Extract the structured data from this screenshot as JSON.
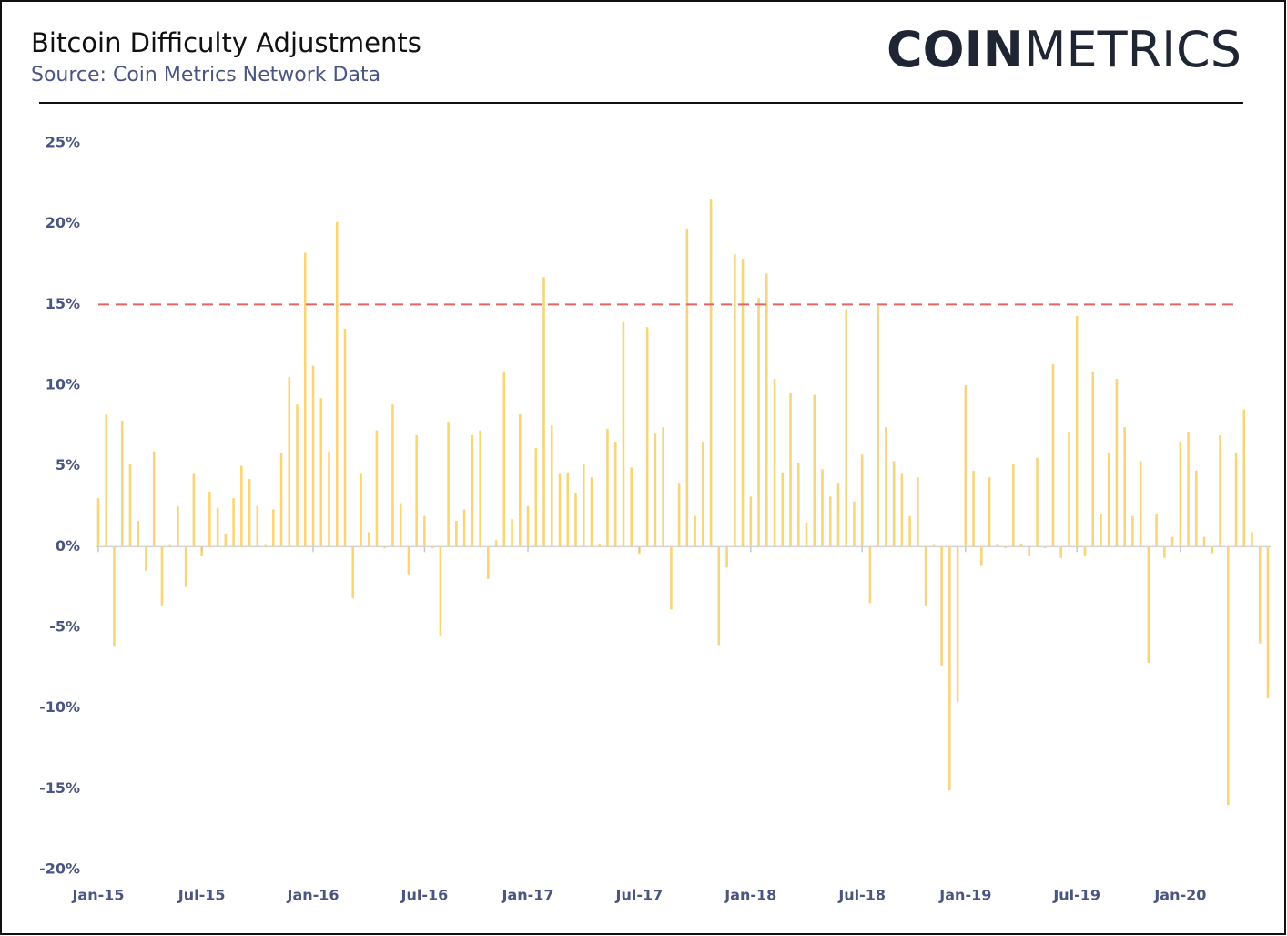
{
  "chart_data": {
    "type": "bar",
    "title": "Bitcoin Difficulty Adjustments",
    "subtitle": "Source: Coin Metrics Network Data",
    "logo_bold": "COIN",
    "logo_light": "METRICS",
    "color": "#f9d57a",
    "reference_line": {
      "value": 15,
      "color": "#e06666"
    },
    "ylim": [
      -20,
      25
    ],
    "yticks": [
      {
        "value": -20,
        "label": "-20%"
      },
      {
        "value": -15,
        "label": "-15%"
      },
      {
        "value": -10,
        "label": "-10%"
      },
      {
        "value": -5,
        "label": "-5%"
      },
      {
        "value": 0,
        "label": "0%"
      },
      {
        "value": 5,
        "label": "5%"
      },
      {
        "value": 10,
        "label": "10%"
      },
      {
        "value": 15,
        "label": "15%"
      },
      {
        "value": 20,
        "label": "20%"
      },
      {
        "value": 25,
        "label": "25%"
      }
    ],
    "categories": [
      "Jan-15",
      null,
      null,
      null,
      null,
      null,
      null,
      null,
      null,
      null,
      null,
      null,
      null,
      "Jul-15",
      null,
      null,
      null,
      null,
      null,
      null,
      null,
      null,
      null,
      null,
      null,
      null,
      null,
      "Jan-16",
      null,
      null,
      null,
      null,
      null,
      null,
      null,
      null,
      null,
      null,
      null,
      null,
      null,
      "Jul-16",
      null,
      null,
      null,
      null,
      null,
      null,
      null,
      null,
      null,
      null,
      null,
      null,
      "Jan-17",
      null,
      null,
      null,
      null,
      null,
      null,
      null,
      null,
      null,
      null,
      null,
      null,
      null,
      "Jul-17",
      null,
      null,
      null,
      null,
      null,
      null,
      null,
      null,
      null,
      null,
      null,
      null,
      null,
      "Jan-18",
      null,
      null,
      null,
      null,
      null,
      null,
      null,
      null,
      null,
      null,
      null,
      null,
      null,
      "Jul-18",
      null,
      null,
      null,
      null,
      null,
      null,
      null,
      null,
      null,
      null,
      null,
      null,
      "Jan-19",
      null,
      null,
      null,
      null,
      null,
      null,
      null,
      null,
      null,
      null,
      null,
      null,
      null,
      "Jul-19",
      null,
      null,
      null,
      null,
      null,
      null,
      null,
      null,
      null,
      null,
      null,
      null,
      "Jan-20",
      null,
      null,
      null,
      null,
      null,
      null,
      null,
      null,
      null,
      null,
      null
    ],
    "values": [
      3.0,
      8.2,
      -6.2,
      7.8,
      5.1,
      1.6,
      -1.5,
      5.9,
      -3.7,
      0.1,
      2.5,
      -2.5,
      4.5,
      -0.6,
      3.4,
      2.4,
      0.8,
      3.0,
      5.0,
      4.2,
      2.5,
      0.1,
      2.3,
      5.8,
      10.5,
      8.8,
      18.2,
      11.2,
      9.2,
      5.9,
      20.1,
      13.5,
      -3.2,
      4.5,
      0.9,
      7.2,
      -0.1,
      8.8,
      2.7,
      -1.7,
      6.9,
      1.9,
      -0.1,
      -5.5,
      7.7,
      1.6,
      2.3,
      6.9,
      7.2,
      -2.0,
      0.4,
      10.8,
      1.7,
      8.2,
      2.5,
      6.1,
      16.7,
      7.5,
      4.5,
      4.6,
      3.3,
      5.1,
      4.3,
      0.2,
      7.3,
      6.5,
      13.9,
      4.9,
      -0.5,
      13.6,
      7.0,
      7.4,
      -3.9,
      3.9,
      19.7,
      1.9,
      6.5,
      21.5,
      -6.1,
      -1.3,
      18.1,
      17.8,
      3.1,
      15.4,
      16.9,
      10.4,
      4.6,
      9.5,
      5.2,
      1.5,
      9.4,
      4.8,
      3.1,
      3.9,
      14.7,
      2.8,
      5.7,
      -3.5,
      14.9,
      7.4,
      5.3,
      4.5,
      1.9,
      4.3,
      -3.7,
      0.1,
      -7.4,
      -15.1,
      -9.6,
      10.0,
      4.7,
      -1.2,
      4.3,
      0.2,
      -0.1,
      5.1,
      0.2,
      -0.6,
      5.5,
      -0.1,
      11.3,
      -0.7,
      7.1,
      14.3,
      -0.6,
      10.8,
      2.0,
      5.8,
      10.4,
      7.4,
      1.9,
      5.3,
      -7.2,
      2.0,
      -0.7,
      0.6,
      6.5,
      7.1,
      4.7,
      0.6,
      -0.4,
      6.9,
      -16.0,
      5.8,
      8.5,
      0.9,
      -6.0,
      -9.4
    ]
  }
}
